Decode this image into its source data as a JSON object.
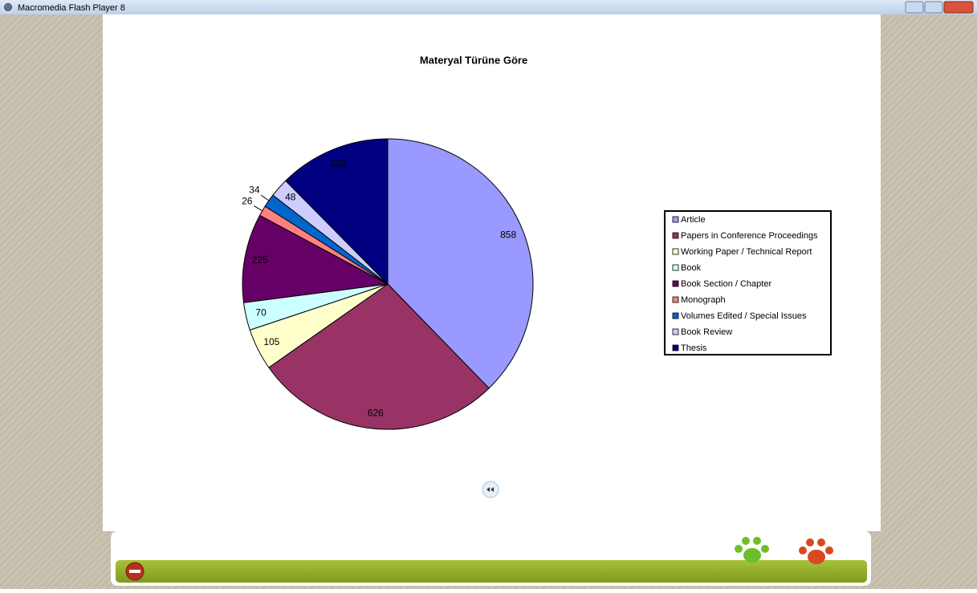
{
  "window": {
    "title": "Macromedia Flash Player 8"
  },
  "chart_data": {
    "type": "pie",
    "title": "Materyal Türüne Göre",
    "categories": [
      "Article",
      "Papers in Conference Proceedings",
      "Working Paper / Technical Report",
      "Book",
      "Book Section / Chapter",
      "Monograph",
      "Volumes Edited / Special Issues",
      "Book Review",
      "Thesis"
    ],
    "values": [
      858,
      626,
      105,
      70,
      225,
      26,
      34,
      48,
      282
    ],
    "colors": [
      "#9999ff",
      "#993366",
      "#ffffcc",
      "#ccffff",
      "#660066",
      "#ff8080",
      "#0066cc",
      "#ccccff",
      "#000080"
    ],
    "legend": "right"
  }
}
